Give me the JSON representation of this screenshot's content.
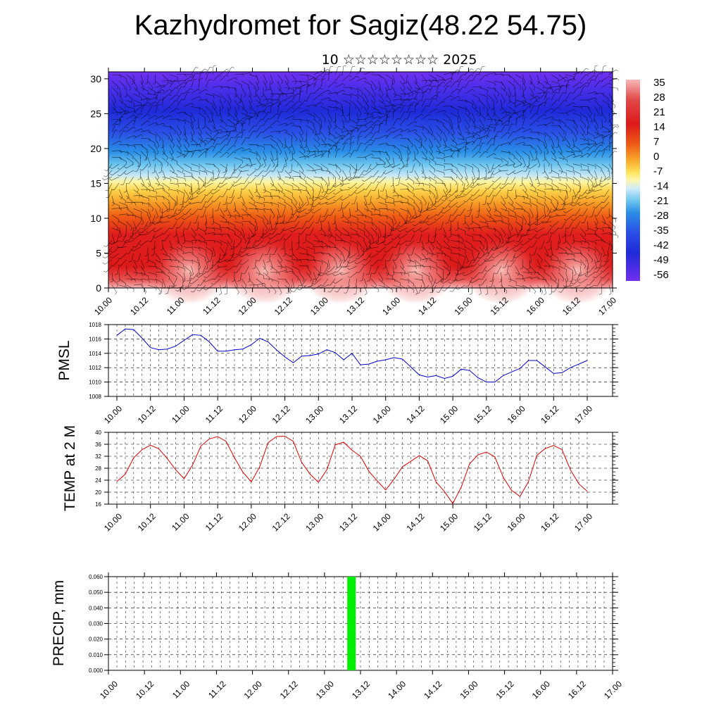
{
  "header": {
    "title": "Kazhydromet for Sagiz(48.22 54.75)",
    "subtitle": "10 ☆☆☆☆☆☆☆☆ 2025"
  },
  "time_labels": [
    "10.00",
    "10.12",
    "11.00",
    "11.12",
    "12.00",
    "12.12",
    "13.00",
    "13.12",
    "14.00",
    "14.12",
    "15.00",
    "15.12",
    "16.00",
    "16.12",
    "17.00"
  ],
  "chart_data": [
    {
      "type": "heatmap",
      "title": "Kazhydromet for Sagiz(48.22 54.75)",
      "x_ticks": [
        "10.00",
        "10.12",
        "11.00",
        "11.12",
        "12.00",
        "12.12",
        "13.00",
        "13.12",
        "14.00",
        "14.12",
        "15.00",
        "15.12",
        "16.00",
        "16.12",
        "17.00"
      ],
      "y_ticks": [
        0,
        5,
        10,
        15,
        20,
        25,
        30
      ],
      "ylim": [
        0,
        31
      ],
      "colorbar_labels": [
        "35",
        "28",
        "21",
        "14",
        "7",
        "0",
        "-7",
        "-14",
        "-21",
        "-28",
        "-35",
        "-42",
        "-49",
        "-56"
      ],
      "overlay": "wind barbs"
    },
    {
      "type": "line",
      "ylabel": "PMSL",
      "ylim": [
        1008,
        1018
      ],
      "y_ticks": [
        1008,
        1010,
        1012,
        1014,
        1016,
        1018
      ],
      "color": "#0000cc",
      "values": [
        1016.5,
        1017.4,
        1017.3,
        1016.1,
        1014.8,
        1014.5,
        1014.6,
        1015.0,
        1015.8,
        1016.6,
        1016.5,
        1015.6,
        1014.3,
        1014.3,
        1014.5,
        1014.6,
        1015.2,
        1016.1,
        1015.6,
        1014.5,
        1013.5,
        1012.7,
        1013.6,
        1013.7,
        1013.9,
        1014.5,
        1014.1,
        1013.1,
        1014.0,
        1012.4,
        1012.5,
        1012.9,
        1013.1,
        1013.4,
        1013.2,
        1012.1,
        1011.0,
        1010.7,
        1010.9,
        1010.5,
        1010.8,
        1011.8,
        1011.6,
        1010.6,
        1010.0,
        1010.0,
        1010.9,
        1011.4,
        1011.9,
        1013.0,
        1013.0,
        1012.1,
        1011.2,
        1011.3,
        1012.0,
        1012.5,
        1013.0
      ]
    },
    {
      "type": "line",
      "ylabel": "TEMP at 2 M",
      "ylim": [
        16,
        40
      ],
      "y_ticks": [
        16,
        20,
        24,
        28,
        32,
        36,
        40
      ],
      "color": "#dd0000",
      "values": [
        23.6,
        26,
        31.5,
        34.2,
        35.7,
        34.5,
        31.2,
        27.5,
        24.5,
        29,
        35.4,
        37.8,
        38.6,
        37,
        31.5,
        26.7,
        23.4,
        28.5,
        36.5,
        38.6,
        38.7,
        37,
        30,
        26,
        23.3,
        27.5,
        35.8,
        36.7,
        34,
        32,
        27,
        23.8,
        20.7,
        24.3,
        28.5,
        30.3,
        32.2,
        30.5,
        23.4,
        20.2,
        16.2,
        21.7,
        29.5,
        32.5,
        33.4,
        31.8,
        25,
        20.6,
        18.6,
        23.5,
        32.3,
        34.6,
        35.6,
        34.2,
        27.5,
        22.8,
        20.3
      ]
    },
    {
      "type": "bar",
      "ylabel": "PRECIP, mm",
      "ylim": [
        0,
        0.06
      ],
      "y_ticks": [
        "0.000",
        "0.010",
        "0.020",
        "0.030",
        "0.040",
        "0.050",
        "0.060"
      ],
      "color": "#00ee00",
      "bars": [
        {
          "x": "13.09",
          "value": 0.06
        }
      ]
    }
  ]
}
